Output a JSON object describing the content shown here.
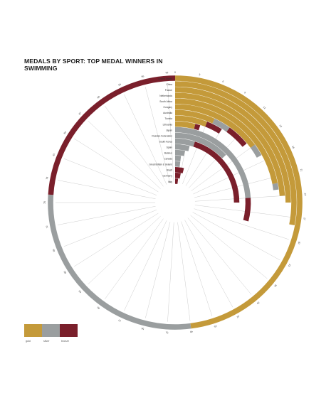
{
  "colors": {
    "gold": "#c49a3a",
    "silver": "#9a9e9f",
    "bronze": "#7a1f2b",
    "spoke": "#cccccc",
    "text": "#333333"
  },
  "legend": [
    {
      "key": "gold",
      "label": "gold"
    },
    {
      "key": "silver",
      "label": "silver"
    },
    {
      "key": "bronze",
      "label": "bronze"
    }
  ],
  "chart_data": {
    "type": "radial-bar",
    "title": "MEDALS BY SPORT: TOP MEDAL WINNERS IN SWIMMING",
    "scale_max": 100,
    "ticks": [
      0,
      3,
      6,
      9,
      12,
      15,
      18,
      21,
      24,
      27,
      30,
      33,
      36,
      39,
      42,
      45,
      48,
      51,
      54,
      57,
      60,
      63,
      66,
      69,
      72,
      75,
      78,
      81,
      84,
      87,
      90,
      93,
      96,
      99
    ],
    "countries": [
      {
        "name": "United States",
        "gold": 48,
        "silver": 28,
        "bronze": 24
      },
      {
        "name": "China",
        "gold": 28,
        "silver": 0,
        "bronze": 0
      },
      {
        "name": "France",
        "gold": 25,
        "silver": 0,
        "bronze": 0
      },
      {
        "name": "Netherlands",
        "gold": 24,
        "silver": 0,
        "bronze": 0
      },
      {
        "name": "South Africa",
        "gold": 22,
        "silver": 1,
        "bronze": 0
      },
      {
        "name": "Hungary",
        "gold": 15,
        "silver": 2,
        "bronze": 0
      },
      {
        "name": "Australia",
        "gold": 7,
        "silver": 3,
        "bronze": 4
      },
      {
        "name": "Tunisia",
        "gold": 6,
        "silver": 0,
        "bronze": 3
      },
      {
        "name": "Lithuania",
        "gold": 4,
        "silver": 0,
        "bronze": 1
      },
      {
        "name": "Japan",
        "gold": 0,
        "silver": 24,
        "bronze": 5
      },
      {
        "name": "Russian Federation",
        "gold": 0,
        "silver": 13,
        "bronze": 0
      },
      {
        "name": "South Korea",
        "gold": 0,
        "silver": 5,
        "bronze": 20
      },
      {
        "name": "Spain",
        "gold": 0,
        "silver": 4,
        "bronze": 0
      },
      {
        "name": "Belarus",
        "gold": 0,
        "silver": 3,
        "bronze": 0
      },
      {
        "name": "Canada",
        "gold": 0,
        "silver": 2,
        "bronze": 0
      },
      {
        "name": "Great Britain & Ireland",
        "gold": 0,
        "silver": 2,
        "bronze": 0
      },
      {
        "name": "Brazil",
        "gold": 0,
        "silver": 0,
        "bronze": 4
      },
      {
        "name": "Germany",
        "gold": 0,
        "silver": 0,
        "bronze": 3
      },
      {
        "name": "Italy",
        "gold": 0,
        "silver": 0,
        "bronze": 2
      }
    ]
  }
}
